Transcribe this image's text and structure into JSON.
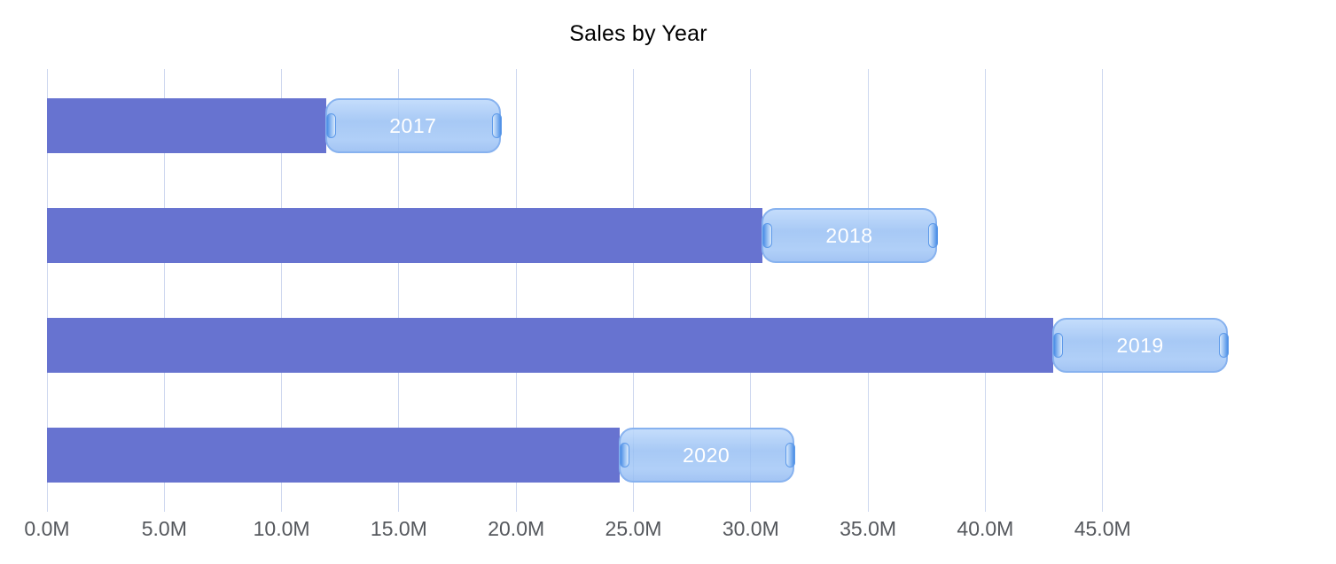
{
  "chart": {
    "title": "Sales by Year"
  },
  "chart_data": {
    "type": "bar",
    "orientation": "horizontal",
    "title": "Sales by Year",
    "xlabel": "",
    "ylabel": "",
    "categories": [
      "2017",
      "2018",
      "2019",
      "2020"
    ],
    "values": [
      11.9,
      30.5,
      42.9,
      24.4
    ],
    "unit": "M",
    "xlim": [
      0,
      53
    ],
    "x_ticks": [
      0,
      5,
      10,
      15,
      20,
      25,
      30,
      35,
      40,
      45
    ],
    "x_tick_labels": [
      "0.0M",
      "5.0M",
      "10.0M",
      "15.0M",
      "20.0M",
      "25.0M",
      "30.0M",
      "35.0M",
      "40.0M",
      "45.0M"
    ],
    "grid": true,
    "legend": "none",
    "colors": {
      "bar": "#6773d0",
      "pill_fill": "#9cc3f5",
      "pill_border": "#87b2ef",
      "pill_text": "#ffffff",
      "grip": "#4a8de5",
      "gridline": "#cdd7ef",
      "axis_text": "#54575c",
      "title_text": "#000000",
      "background": "#ffffff"
    }
  }
}
